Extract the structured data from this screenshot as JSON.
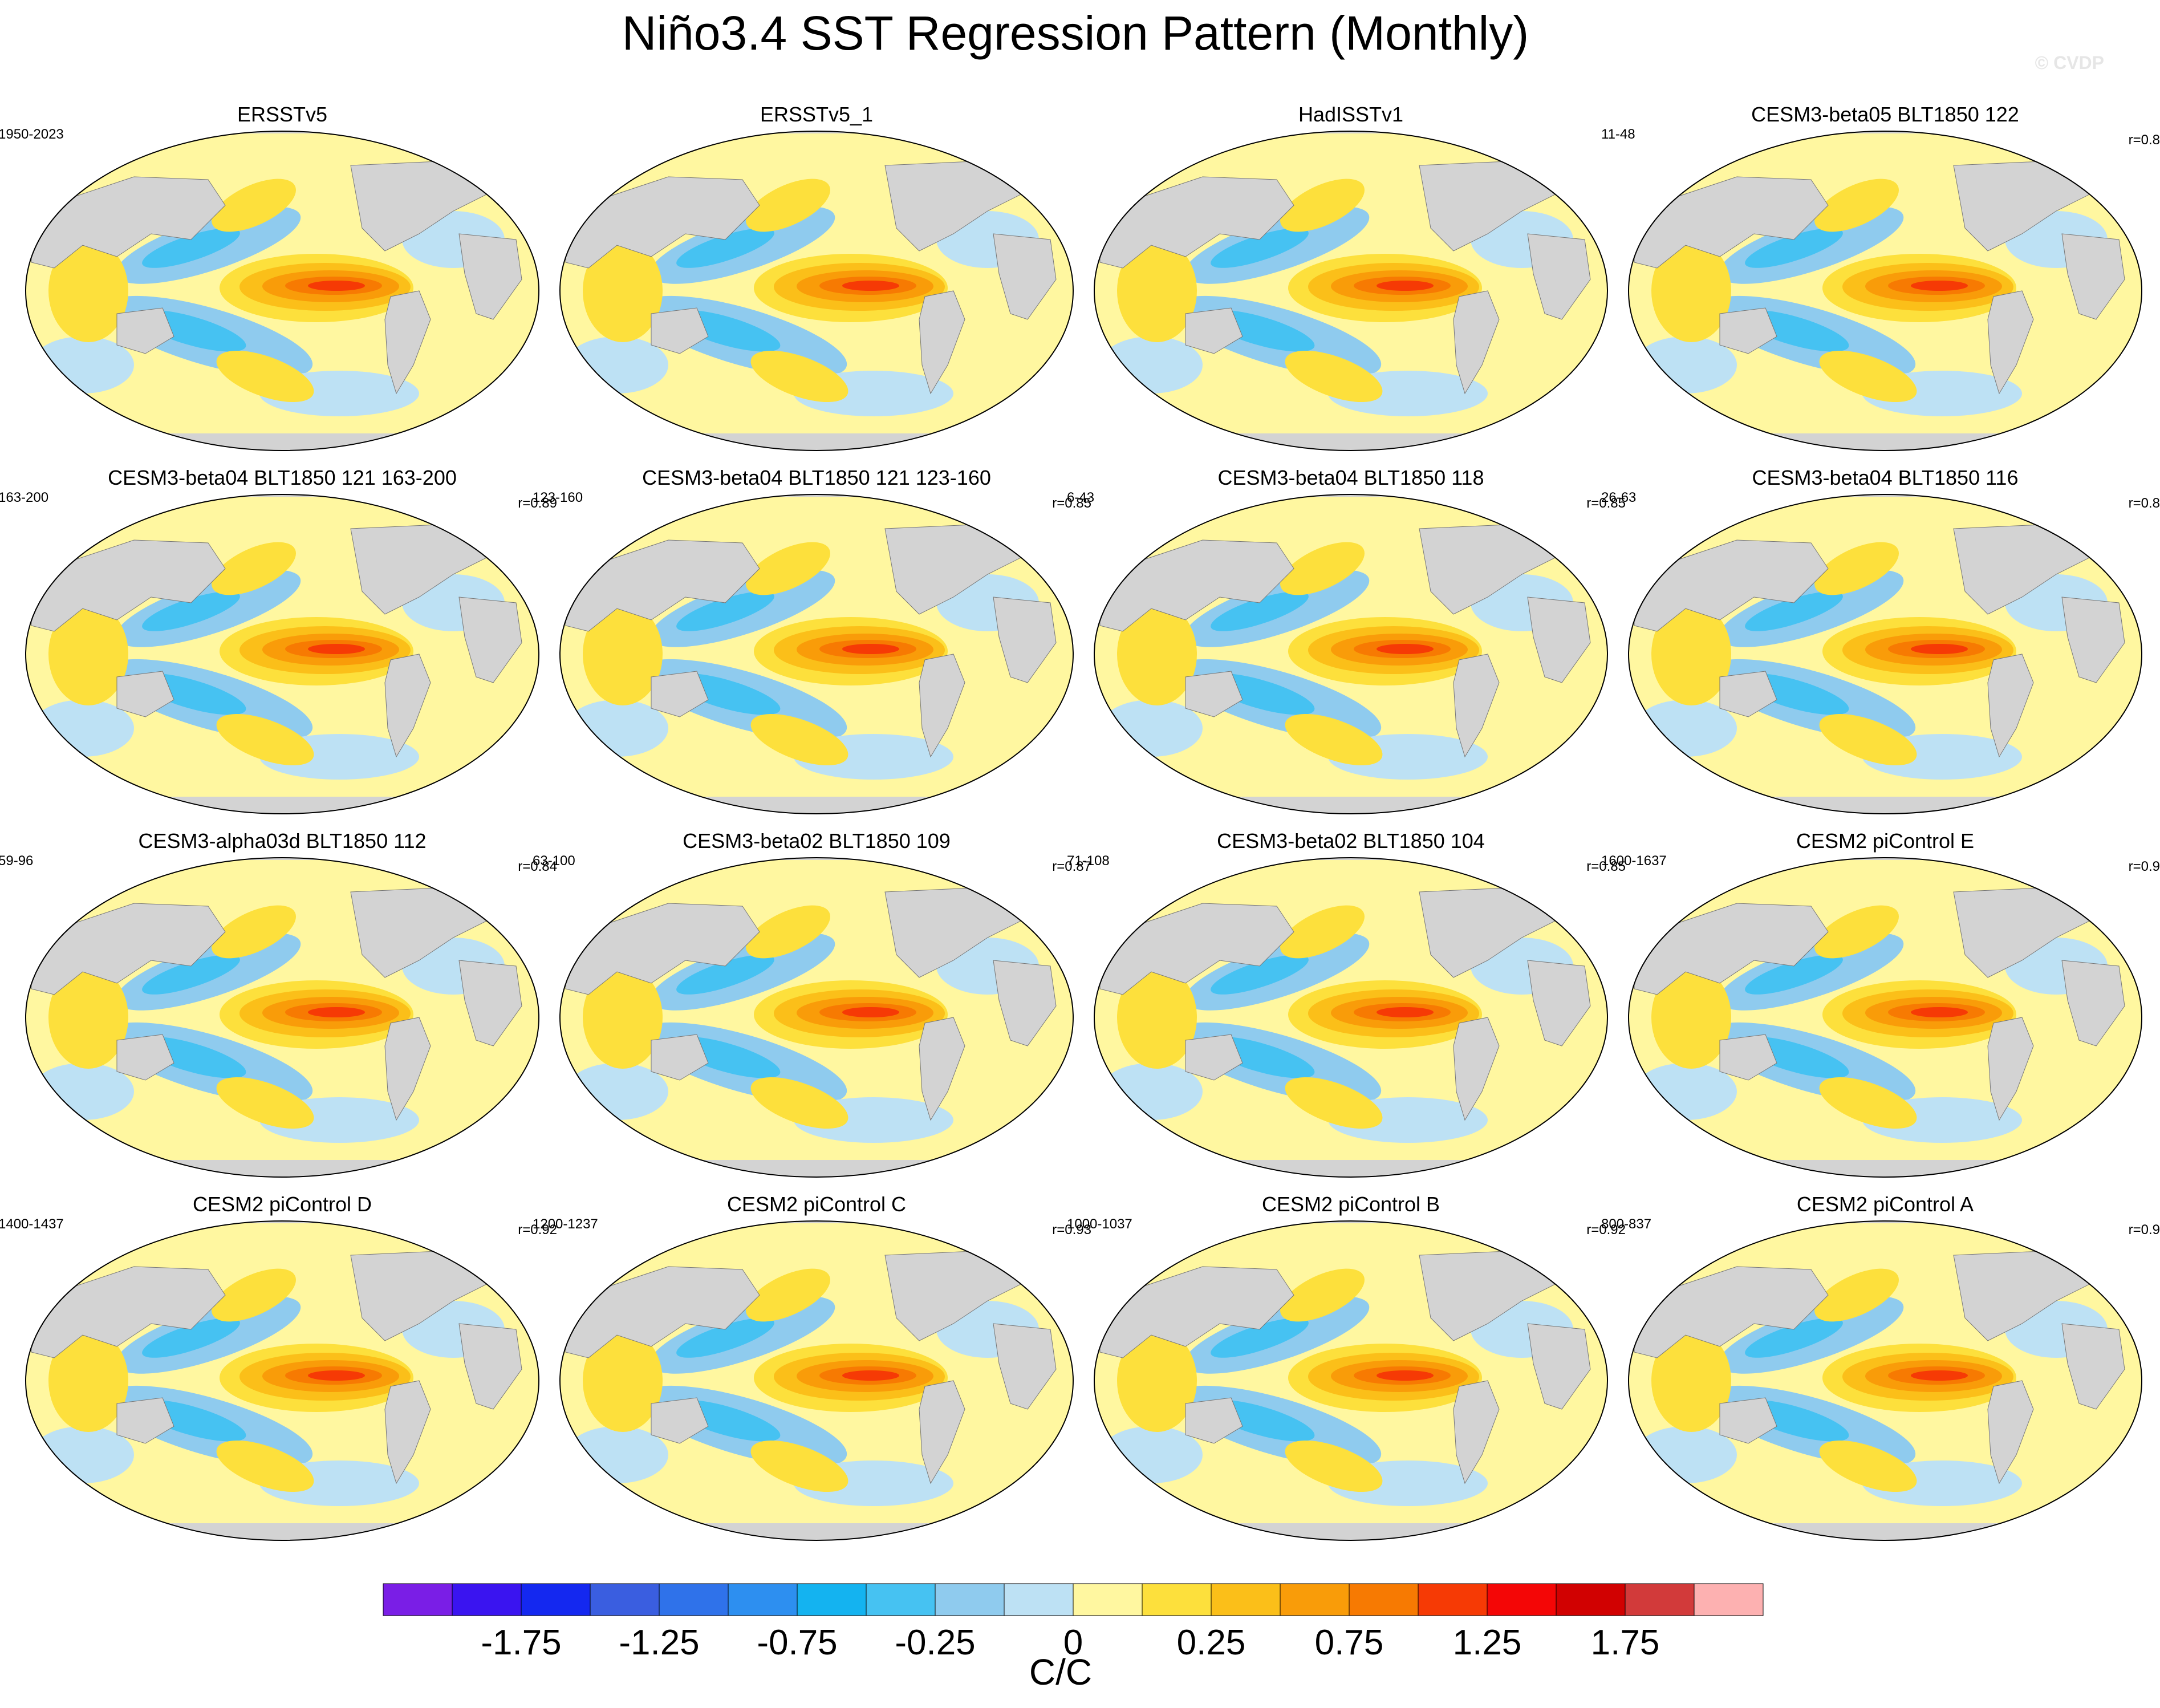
{
  "title": "Niño3.4 SST Regression Pattern (Monthly)",
  "watermark": "© CVDP",
  "chart_data": {
    "type": "heatmap",
    "panels": [
      {
        "title": "ERSSTv5",
        "period": "1950-2023",
        "corr": ""
      },
      {
        "title": "ERSSTv5_1",
        "period": "",
        "corr": ""
      },
      {
        "title": "HadISSTv1",
        "period": "",
        "corr": ""
      },
      {
        "title": "CESM3-beta05 BLT1850 122",
        "period": "11-48",
        "corr": "r=0.8"
      },
      {
        "title": "CESM3-beta04 BLT1850 121 163-200",
        "period": "163-200",
        "corr": "r=0.89"
      },
      {
        "title": "CESM3-beta04 BLT1850 121 123-160",
        "period": "123-160",
        "corr": "r=0.85"
      },
      {
        "title": "CESM3-beta04 BLT1850 118",
        "period": "6-43",
        "corr": "r=0.85"
      },
      {
        "title": "CESM3-beta04 BLT1850 116",
        "period": "26-63",
        "corr": "r=0.8"
      },
      {
        "title": "CESM3-alpha03d BLT1850 112",
        "period": "59-96",
        "corr": "r=0.84"
      },
      {
        "title": "CESM3-beta02 BLT1850 109",
        "period": "63-100",
        "corr": "r=0.87"
      },
      {
        "title": "CESM3-beta02 BLT1850 104",
        "period": "71-108",
        "corr": "r=0.85"
      },
      {
        "title": "CESM2 piControl E",
        "period": "1600-1637",
        "corr": "r=0.9"
      },
      {
        "title": "CESM2 piControl D",
        "period": "1400-1437",
        "corr": "r=0.92"
      },
      {
        "title": "CESM2 piControl C",
        "period": "1200-1237",
        "corr": "r=0.93"
      },
      {
        "title": "CESM2 piControl B",
        "period": "1000-1037",
        "corr": "r=0.92"
      },
      {
        "title": "CESM2 piControl A",
        "period": "800-837",
        "corr": "r=0.9"
      }
    ],
    "colorbar": {
      "colors": [
        "#7a1ee6",
        "#3a14f0",
        "#1428f0",
        "#3a5ee0",
        "#2f72ea",
        "#2d8ff0",
        "#14b3f0",
        "#46c2f2",
        "#8fcbee",
        "#bde1f4",
        "#fff7a0",
        "#fde03c",
        "#fbbf19",
        "#f99c09",
        "#f77a02",
        "#f63a05",
        "#f40606",
        "#d10101",
        "#d23a3a",
        "#fdb1b1"
      ],
      "tick_labels": [
        "-1.75",
        "-1.25",
        "-0.75",
        "-0.25",
        "0",
        "0.25",
        "0.75",
        "1.25",
        "1.75"
      ],
      "tick_values": [
        -1.75,
        -1.25,
        -0.75,
        -0.25,
        0,
        0.25,
        0.75,
        1.25,
        1.75
      ],
      "units": "C/C"
    }
  }
}
